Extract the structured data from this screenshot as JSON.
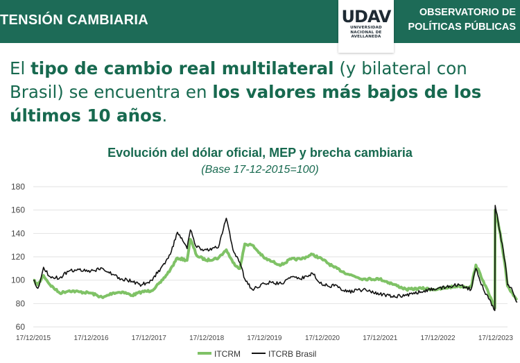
{
  "header": {
    "section_title": "TENSIÓN CAMBIARIA",
    "logo_word": "UDAV",
    "logo_lines": [
      "UNIVERSIDAD",
      "NACIONAL DE",
      "AVELLANEDA"
    ],
    "observatory_line1": "OBSERVATORIO DE",
    "observatory_line2": "POLÍTICAS PÚBLICAS"
  },
  "headline": {
    "p1": "El ",
    "b1": "tipo de cambio real multilateral",
    "p2": " (y bilateral con Brasil) se encuentra en ",
    "b2": "los valores más bajos de los últimos 10 años",
    "p3": "."
  },
  "colors": {
    "brand": "#1d6b57",
    "itcrm": "#7fc266",
    "itcrb": "#111111",
    "grid": "#e2e2e2"
  },
  "chart_data": {
    "type": "line",
    "title": "Evolución del dólar oficial, MEP y brecha cambiaria",
    "subtitle": "(Base 17-12-2015=100)",
    "xlabel": "",
    "ylabel": "",
    "ylim": [
      60,
      180
    ],
    "yticks": [
      60,
      80,
      100,
      120,
      140,
      160,
      180
    ],
    "xlim": [
      "2015-12-17",
      "2024-03-01"
    ],
    "xtick_labels": [
      "17/12/2015",
      "17/12/2016",
      "17/12/2017",
      "17/12/2018",
      "17/12/2019",
      "17/12/2020",
      "17/12/2021",
      "17/12/2022",
      "17/12/2023"
    ],
    "xtick_dates": [
      "2015-12-17",
      "2016-12-17",
      "2017-12-17",
      "2018-12-17",
      "2019-12-17",
      "2020-12-17",
      "2021-12-17",
      "2022-12-17",
      "2023-12-17"
    ],
    "grid": "horizontal",
    "legend": "bottom-center",
    "series": [
      {
        "name": "ITCRM",
        "color": "#7fc266",
        "points": [
          [
            "2015-12-17",
            100
          ],
          [
            "2016-01-15",
            96
          ],
          [
            "2016-02-20",
            104
          ],
          [
            "2016-04-01",
            96
          ],
          [
            "2016-06-01",
            89
          ],
          [
            "2016-08-01",
            91
          ],
          [
            "2016-10-01",
            90
          ],
          [
            "2016-12-15",
            89
          ],
          [
            "2017-03-01",
            85
          ],
          [
            "2017-05-01",
            89
          ],
          [
            "2017-07-01",
            90
          ],
          [
            "2017-09-01",
            87
          ],
          [
            "2017-11-01",
            90
          ],
          [
            "2018-01-01",
            91
          ],
          [
            "2018-03-01",
            98
          ],
          [
            "2018-05-01",
            109
          ],
          [
            "2018-06-15",
            119
          ],
          [
            "2018-08-15",
            117
          ],
          [
            "2018-09-05",
            135
          ],
          [
            "2018-10-15",
            121
          ],
          [
            "2018-12-15",
            117
          ],
          [
            "2019-03-01",
            119
          ],
          [
            "2019-04-20",
            126
          ],
          [
            "2019-06-01",
            115
          ],
          [
            "2019-07-15",
            110
          ],
          [
            "2019-08-15",
            131
          ],
          [
            "2019-10-01",
            130
          ],
          [
            "2019-12-15",
            119
          ],
          [
            "2020-02-01",
            116
          ],
          [
            "2020-04-01",
            113
          ],
          [
            "2020-06-01",
            118
          ],
          [
            "2020-08-01",
            118
          ],
          [
            "2020-10-15",
            122
          ],
          [
            "2020-12-15",
            118
          ],
          [
            "2021-03-01",
            111
          ],
          [
            "2021-06-01",
            105
          ],
          [
            "2021-09-01",
            101
          ],
          [
            "2021-12-15",
            101
          ],
          [
            "2022-03-01",
            97
          ],
          [
            "2022-06-01",
            92
          ],
          [
            "2022-09-01",
            93
          ],
          [
            "2022-12-15",
            92
          ],
          [
            "2023-03-01",
            94
          ],
          [
            "2023-05-01",
            95
          ],
          [
            "2023-07-15",
            94
          ],
          [
            "2023-08-14",
            113
          ],
          [
            "2023-10-01",
            99
          ],
          [
            "2023-12-12",
            76
          ],
          [
            "2023-12-14",
            160
          ],
          [
            "2024-01-15",
            140
          ],
          [
            "2024-02-15",
            112
          ],
          [
            "2024-03-01",
            95
          ],
          [
            "2024-04-01",
            89
          ],
          [
            "2024-05-01",
            83
          ]
        ]
      },
      {
        "name": "ITCRB Brasil",
        "color": "#111111",
        "points": [
          [
            "2015-12-17",
            100
          ],
          [
            "2016-01-15",
            93
          ],
          [
            "2016-02-20",
            111
          ],
          [
            "2016-04-01",
            103
          ],
          [
            "2016-06-01",
            102
          ],
          [
            "2016-08-01",
            108
          ],
          [
            "2016-10-01",
            109
          ],
          [
            "2016-12-15",
            108
          ],
          [
            "2017-03-01",
            110
          ],
          [
            "2017-05-01",
            105
          ],
          [
            "2017-07-01",
            101
          ],
          [
            "2017-09-01",
            99
          ],
          [
            "2017-11-01",
            96
          ],
          [
            "2018-01-01",
            100
          ],
          [
            "2018-03-01",
            110
          ],
          [
            "2018-05-01",
            122
          ],
          [
            "2018-06-15",
            141
          ],
          [
            "2018-08-15",
            127
          ],
          [
            "2018-09-05",
            143
          ],
          [
            "2018-10-15",
            128
          ],
          [
            "2018-12-15",
            126
          ],
          [
            "2019-03-01",
            128
          ],
          [
            "2019-04-20",
            153
          ],
          [
            "2019-06-01",
            126
          ],
          [
            "2019-07-15",
            115
          ],
          [
            "2019-08-15",
            101
          ],
          [
            "2019-10-01",
            92
          ],
          [
            "2019-12-15",
            97
          ],
          [
            "2020-02-01",
            98
          ],
          [
            "2020-04-01",
            97
          ],
          [
            "2020-06-01",
            103
          ],
          [
            "2020-08-01",
            101
          ],
          [
            "2020-10-15",
            106
          ],
          [
            "2020-12-15",
            96
          ],
          [
            "2021-03-01",
            95
          ],
          [
            "2021-06-01",
            90
          ],
          [
            "2021-09-01",
            92
          ],
          [
            "2021-12-15",
            88
          ],
          [
            "2022-03-01",
            86
          ],
          [
            "2022-06-01",
            87
          ],
          [
            "2022-09-01",
            90
          ],
          [
            "2022-12-15",
            93
          ],
          [
            "2023-03-01",
            95
          ],
          [
            "2023-05-01",
            96
          ],
          [
            "2023-07-15",
            92
          ],
          [
            "2023-08-14",
            110
          ],
          [
            "2023-10-01",
            92
          ],
          [
            "2023-12-12",
            74
          ],
          [
            "2023-12-14",
            164
          ],
          [
            "2024-01-15",
            140
          ],
          [
            "2024-02-15",
            115
          ],
          [
            "2024-03-01",
            96
          ],
          [
            "2024-04-01",
            91
          ],
          [
            "2024-05-01",
            81
          ]
        ]
      }
    ]
  }
}
